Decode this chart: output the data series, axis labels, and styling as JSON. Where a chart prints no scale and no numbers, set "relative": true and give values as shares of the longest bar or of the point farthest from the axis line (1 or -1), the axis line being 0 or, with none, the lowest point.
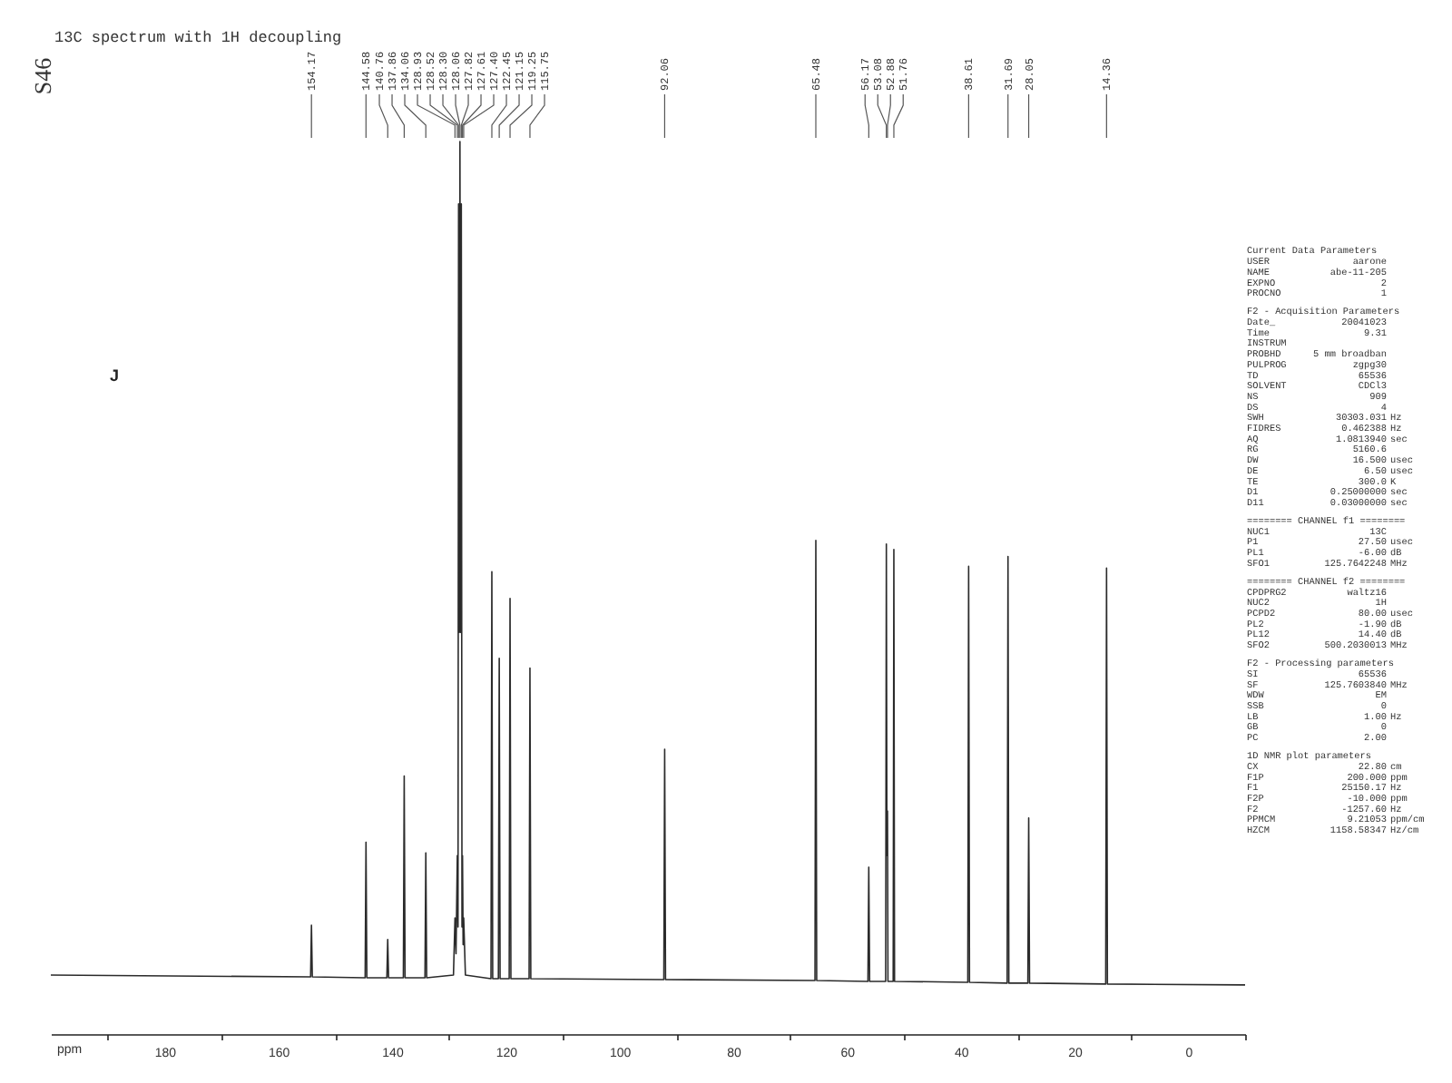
{
  "chart_data": {
    "type": "line",
    "title": "13C spectrum with 1H decoupling",
    "xlabel": "ppm",
    "relative": true,
    "xlim": [
      200,
      -10
    ],
    "xticks": [
      {
        "value": 190,
        "label": null
      },
      180,
      {
        "value": 170,
        "label": null
      },
      160,
      {
        "value": 150,
        "label": null
      },
      140,
      {
        "value": 130,
        "label": null
      },
      120,
      {
        "value": 110,
        "label": null
      },
      100,
      {
        "value": 90,
        "label": null
      },
      80,
      {
        "value": 70,
        "label": null
      },
      60,
      {
        "value": 50,
        "label": null
      },
      40,
      {
        "value": 30,
        "label": null
      },
      20,
      {
        "value": 10,
        "label": null
      },
      0,
      {
        "value": -10,
        "label": null
      }
    ],
    "series": [
      {
        "color": "#2b2b2b",
        "x": [
          200,
          154.32,
          154.17,
          154.02,
          144.73,
          144.58,
          144.43,
          140.91,
          140.76,
          140.61,
          138.01,
          137.86,
          137.71,
          134.21,
          134.06,
          133.91,
          129.2,
          128.93,
          128.75,
          128.52,
          128.4,
          128.3,
          128.18,
          128.06,
          127.94,
          127.82,
          127.7,
          127.61,
          127.5,
          127.4,
          127.1,
          122.6,
          122.45,
          122.3,
          121.3,
          121.15,
          121.0,
          119.4,
          119.25,
          119.1,
          115.9,
          115.75,
          115.6,
          92.21,
          92.06,
          91.91,
          65.63,
          65.48,
          65.33,
          56.32,
          56.17,
          56.02,
          53.2,
          53.08,
          52.98,
          52.88,
          52.8,
          51.88,
          51.76,
          51.64,
          38.76,
          38.61,
          38.46,
          31.84,
          31.69,
          31.54,
          28.2,
          28.05,
          27.9,
          14.51,
          14.36,
          14.21,
          -10
        ],
        "values": [
          0.066,
          0.064,
          0.122,
          0.064,
          0.063,
          0.215,
          0.063,
          0.063,
          0.106,
          0.063,
          0.063,
          0.289,
          0.063,
          0.063,
          0.203,
          0.063,
          0.066,
          0.13,
          0.09,
          0.2,
          0.12,
          0.93,
          0.45,
          1.0,
          0.45,
          0.93,
          0.12,
          0.2,
          0.1,
          0.13,
          0.066,
          0.062,
          0.518,
          0.062,
          0.062,
          0.421,
          0.062,
          0.062,
          0.488,
          0.062,
          0.062,
          0.41,
          0.062,
          0.061,
          0.319,
          0.061,
          0.06,
          0.553,
          0.06,
          0.059,
          0.187,
          0.059,
          0.059,
          0.549,
          0.2,
          0.25,
          0.059,
          0.059,
          0.543,
          0.059,
          0.058,
          0.524,
          0.058,
          0.057,
          0.535,
          0.057,
          0.057,
          0.242,
          0.057,
          0.056,
          0.522,
          0.056,
          0.055
        ]
      }
    ],
    "annotations": [
      "S46",
      "J",
      "Current Data Parameters",
      "USER  aarone",
      "NAME  abe-11-205",
      "EXPNO  2",
      "PROCNO  1",
      "F2 - Acquisition Parameters",
      "Date_  20041023",
      "Time  9.31",
      "INSTRUM",
      "PROBHD  5 mm broadban",
      "PULPROG  zgpg30",
      "TD  65536",
      "SOLVENT  CDCl3",
      "NS  909",
      "DS  4",
      "SWH  30303.031  Hz",
      "FIDRES  0.462388  Hz",
      "AQ  1.0813940  sec",
      "RG  5160.6",
      "DW  16.500  usec",
      "DE  6.50  usec",
      "TE  300.0  K",
      "D1  0.25000000  sec",
      "D11  0.03000000  sec",
      "======== CHANNEL f1 ========",
      "NUC1  13C",
      "P1  27.50  usec",
      "PL1  -6.00  dB",
      "SFO1  125.7642248  MHz",
      "======== CHANNEL f2 ========",
      "CPDPRG2  waltz16",
      "NUC2  1H",
      "PCPD2  80.00  usec",
      "PL2  -1.90  dB",
      "PL12  14.40  dB",
      "SFO2  500.2030013  MHz",
      "F2 - Processing parameters",
      "SI  65536",
      "SF  125.7603840  MHz",
      "WDW  EM",
      "SSB  0",
      "LB  1.00  Hz",
      "GB  0",
      "PC  2.00",
      "1D NMR plot parameters",
      "CX  22.80  cm",
      "F1P  200.000  ppm",
      "F1  25150.17  Hz",
      "F2P  -10.000  ppm",
      "F2  -1257.60  Hz",
      "PPMCM  9.21053  ppm/cm",
      "HZCM  1158.58347  Hz/cm",
      {
        "text": "154.17",
        "x": 154.17
      },
      {
        "text": "144.58",
        "x": 144.58
      },
      {
        "text": "140.76",
        "x": 140.76
      },
      {
        "text": "137.86",
        "x": 137.86
      },
      {
        "text": "134.06",
        "x": 134.06
      },
      {
        "text": "128.93",
        "x": 128.93
      },
      {
        "text": "128.52",
        "x": 128.52
      },
      {
        "text": "128.30",
        "x": 128.3
      },
      {
        "text": "128.06",
        "x": 128.06
      },
      {
        "text": "127.82",
        "x": 127.82
      },
      {
        "text": "127.61",
        "x": 127.61
      },
      {
        "text": "127.40",
        "x": 127.4
      },
      {
        "text": "122.45",
        "x": 122.45
      },
      {
        "text": "121.15",
        "x": 121.15
      },
      {
        "text": "119.25",
        "x": 119.25
      },
      {
        "text": "115.75",
        "x": 115.75
      },
      {
        "text": "92.06",
        "x": 92.06
      },
      {
        "text": "65.48",
        "x": 65.48
      },
      {
        "text": "56.17",
        "x": 56.17
      },
      {
        "text": "53.08",
        "x": 53.08
      },
      {
        "text": "52.88",
        "x": 52.88
      },
      {
        "text": "51.76",
        "x": 51.76
      },
      {
        "text": "38.61",
        "x": 38.61
      },
      {
        "text": "31.69",
        "x": 31.69
      },
      {
        "text": "28.05",
        "x": 28.05
      },
      {
        "text": "14.36",
        "x": 14.36
      }
    ]
  }
}
